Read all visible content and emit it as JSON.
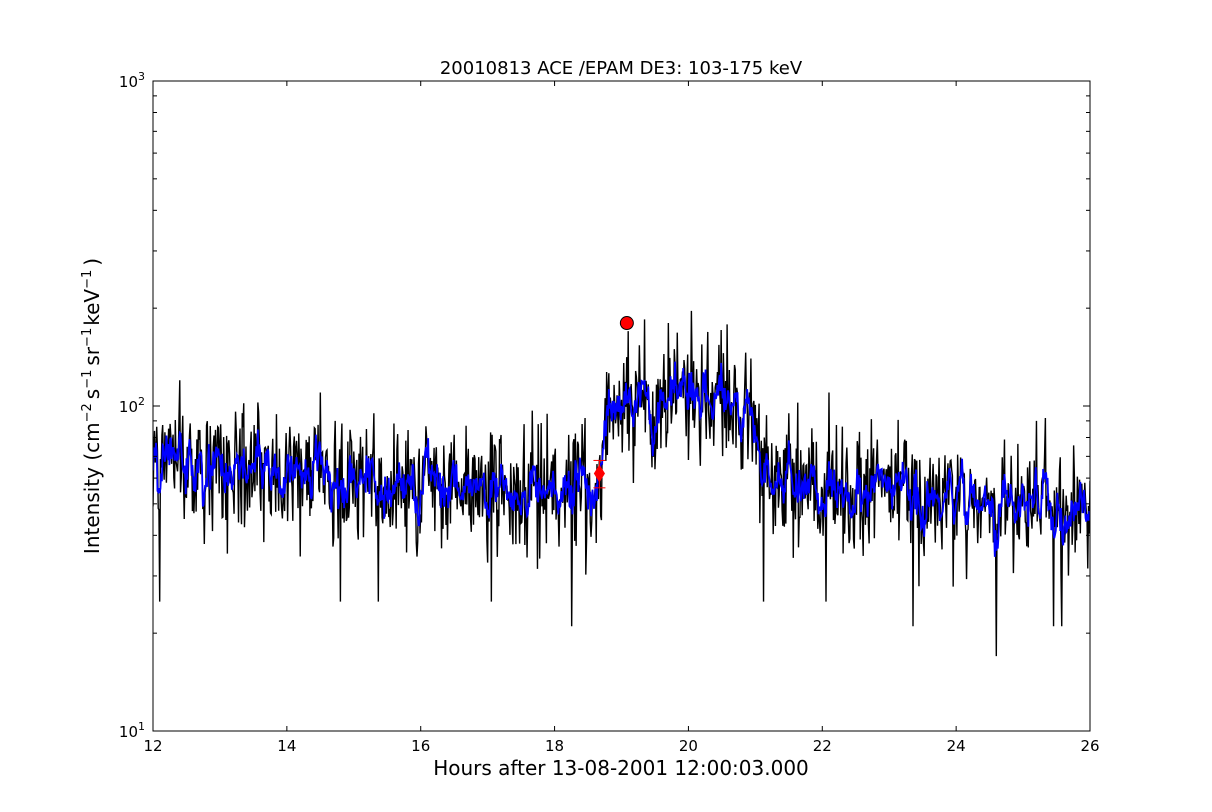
{
  "chart_data": {
    "type": "line",
    "title": "20010813 ACE /EPAM DE3: 103-175 keV",
    "xlabel": "Hours after 13-08-2001 12:00:03.000",
    "ylabel": {
      "prefix": "Intensity (cm",
      "exp1": "−2",
      "part2": "s",
      "exp2": "−1",
      "part3": "sr",
      "exp3": "−1",
      "part4": "keV",
      "exp4": "−1",
      "suffix": ")"
    },
    "xlim": [
      12,
      26
    ],
    "ylim": [
      10,
      1000
    ],
    "yscale": "log",
    "grid": false,
    "x_ticks": [
      {
        "value": 12,
        "label": "12"
      },
      {
        "value": 14,
        "label": "14"
      },
      {
        "value": 16,
        "label": "16"
      },
      {
        "value": 18,
        "label": "18"
      },
      {
        "value": 20,
        "label": "20"
      },
      {
        "value": 22,
        "label": "22"
      },
      {
        "value": 24,
        "label": "24"
      },
      {
        "value": 26,
        "label": "26"
      }
    ],
    "y_ticks": [
      {
        "value": 10,
        "base": "10",
        "exp": "1"
      },
      {
        "value": 100,
        "base": "10",
        "exp": "2"
      },
      {
        "value": 1000,
        "base": "10",
        "exp": "3"
      }
    ],
    "series": [
      {
        "style": "raw",
        "color": "#000000",
        "envelope": [
          [
            12.0,
            70
          ],
          [
            12.5,
            68
          ],
          [
            13.0,
            65
          ],
          [
            13.5,
            63
          ],
          [
            14.0,
            62
          ],
          [
            14.5,
            60
          ],
          [
            15.0,
            58
          ],
          [
            15.5,
            58
          ],
          [
            16.0,
            57
          ],
          [
            16.5,
            57
          ],
          [
            17.0,
            56
          ],
          [
            17.5,
            56
          ],
          [
            18.0,
            56
          ],
          [
            18.3,
            56
          ],
          [
            18.6,
            57
          ],
          [
            18.72,
            70
          ],
          [
            18.8,
            95
          ],
          [
            19.0,
            102
          ],
          [
            19.5,
            105
          ],
          [
            20.0,
            110
          ],
          [
            20.5,
            102
          ],
          [
            21.0,
            90
          ],
          [
            21.1,
            62
          ],
          [
            21.5,
            58
          ],
          [
            22.0,
            56
          ],
          [
            22.5,
            54
          ],
          [
            23.0,
            53
          ],
          [
            23.5,
            52
          ],
          [
            24.0,
            52
          ],
          [
            24.5,
            50
          ],
          [
            25.0,
            50
          ],
          [
            25.5,
            49
          ],
          [
            26.0,
            47
          ]
        ],
        "noise_factor": 0.42,
        "spikes": [
          {
            "x": 18.25,
            "y": 21
          },
          {
            "x": 23.35,
            "y": 21
          },
          {
            "x": 24.6,
            "y": 17
          },
          {
            "x": 19.7,
            "y": 180
          },
          {
            "x": 19.1,
            "y": 170
          },
          {
            "x": 15.37,
            "y": 25
          },
          {
            "x": 12.1,
            "y": 25
          },
          {
            "x": 14.8,
            "y": 25
          },
          {
            "x": 17.05,
            "y": 25
          },
          {
            "x": 21.12,
            "y": 25
          },
          {
            "x": 22.05,
            "y": 25
          },
          {
            "x": 25.45,
            "y": 21
          },
          {
            "x": 25.58,
            "y": 21
          },
          {
            "x": 12.4,
            "y": 120
          },
          {
            "x": 14.5,
            "y": 110
          },
          {
            "x": 22.1,
            "y": 110
          },
          {
            "x": 25.2,
            "y": 90
          }
        ]
      },
      {
        "style": "smoothed",
        "color": "#0000ff",
        "noise_factor": 0.16
      }
    ],
    "markers": [
      {
        "shape": "circle",
        "x": 19.08,
        "y": 180,
        "color": "#ff0000"
      },
      {
        "shape": "diamond",
        "x": 18.67,
        "y": 62,
        "color": "#ff0000",
        "err_low": 56,
        "err_high": 68
      }
    ]
  }
}
